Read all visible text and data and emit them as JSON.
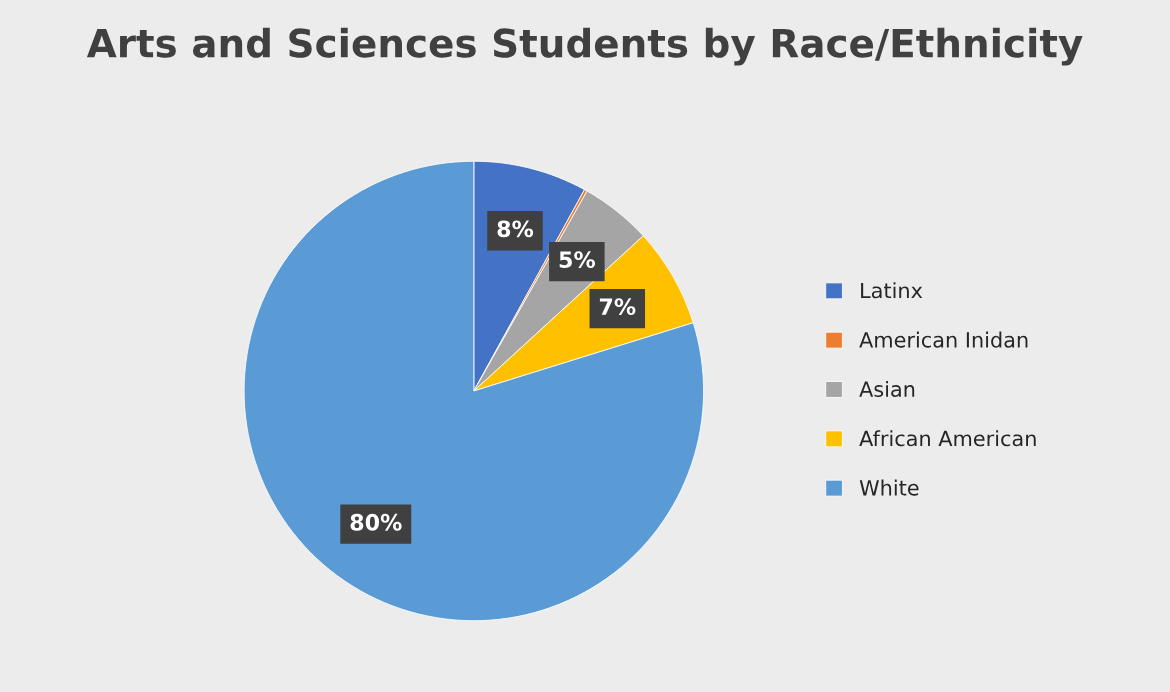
{
  "chart_data": {
    "type": "pie",
    "title": "Arts and Sciences Students by Race/Ethnicity",
    "categories": [
      "Latinx",
      "American Inidan",
      "Asian",
      "African American",
      "White"
    ],
    "values": [
      8,
      0.2,
      5,
      7,
      79.8
    ],
    "colors": [
      "#4472c4",
      "#ed7d31",
      "#a5a5a5",
      "#ffc000",
      "#5b9bd5"
    ],
    "value_labels": [
      "8%",
      null,
      "5%",
      "7%",
      "80%"
    ],
    "legend": "right"
  }
}
